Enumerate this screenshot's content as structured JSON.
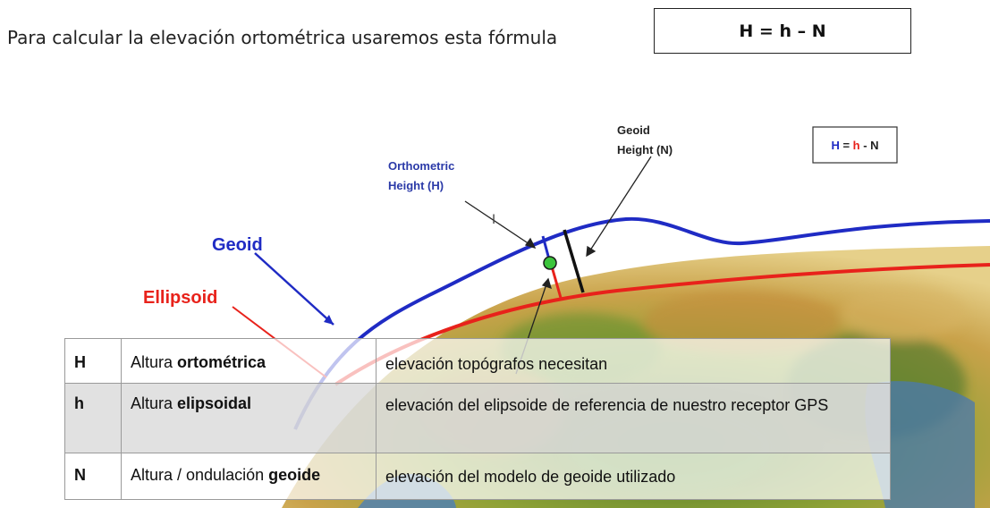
{
  "intro": {
    "text": "Para calcular la elevación ortométrica usaremos esta fórmula",
    "formula": "H = h – N"
  },
  "diagram": {
    "labels": {
      "geoid": "Geoid",
      "ellipsoid": "Ellipsoid",
      "orthometric_line1": "Orthometric",
      "orthometric_line2": "Height (H)",
      "geoid_height_line1": "Geoid",
      "geoid_height_line2": "Height (N)"
    },
    "inset_formula": {
      "H": "H",
      "eq": " = ",
      "h": "h",
      "minus": " - ",
      "N": "N"
    },
    "colors": {
      "geoid": "#1f2bc4",
      "ellipsoid": "#e8221b",
      "point": "#3cc43c",
      "label_blue": "#2b3aa8"
    }
  },
  "table": {
    "rows": [
      {
        "symbol": "H",
        "name_prefix": "Altura ",
        "name_bold": "ortométrica",
        "description": "elevación topógrafos necesitan"
      },
      {
        "symbol": "h",
        "name_prefix": "Altura ",
        "name_bold": "elipsoidal",
        "description": "elevación del elipsoide de referencia de nuestro receptor GPS"
      },
      {
        "symbol": "N",
        "name_prefix": "Altura / ondulación ",
        "name_bold": "geoide",
        "description": "elevación del modelo de geoide utilizado"
      }
    ]
  }
}
